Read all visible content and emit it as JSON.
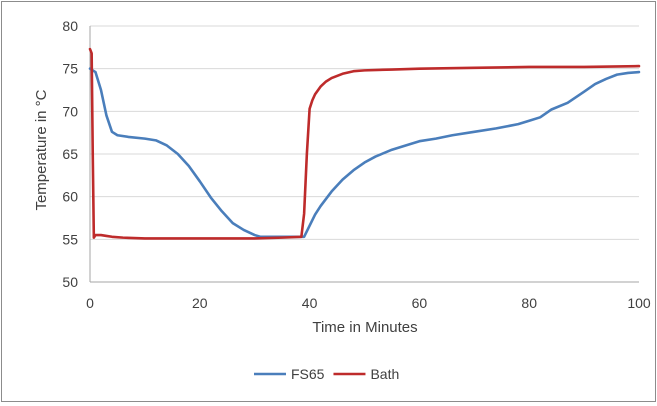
{
  "chart_data": {
    "type": "line",
    "title": "",
    "xlabel": "Time in Minutes",
    "ylabel": "Temperature in °C",
    "xlim": [
      0,
      100
    ],
    "ylim": [
      50,
      80
    ],
    "xticks": [
      "0",
      "20",
      "40",
      "60",
      "80",
      "100"
    ],
    "yticks": [
      "50",
      "55",
      "60",
      "65",
      "70",
      "75",
      "80"
    ],
    "grid": "horizontal",
    "legend": "bottom",
    "series": [
      {
        "name": "FS65",
        "color": "#4a7ebb",
        "points": [
          [
            0,
            75.0
          ],
          [
            1,
            74.6
          ],
          [
            2,
            72.5
          ],
          [
            3,
            69.5
          ],
          [
            4,
            67.6
          ],
          [
            5,
            67.2
          ],
          [
            7,
            67.0
          ],
          [
            10,
            66.8
          ],
          [
            12,
            66.6
          ],
          [
            14,
            66.0
          ],
          [
            16,
            65.0
          ],
          [
            18,
            63.6
          ],
          [
            20,
            61.8
          ],
          [
            22,
            59.9
          ],
          [
            24,
            58.3
          ],
          [
            26,
            56.9
          ],
          [
            28,
            56.1
          ],
          [
            30,
            55.5
          ],
          [
            31,
            55.3
          ],
          [
            33,
            55.3
          ],
          [
            36,
            55.3
          ],
          [
            39,
            55.3
          ],
          [
            40,
            56.6
          ],
          [
            41,
            57.9
          ],
          [
            42,
            58.9
          ],
          [
            44,
            60.6
          ],
          [
            46,
            62.0
          ],
          [
            48,
            63.1
          ],
          [
            50,
            64.0
          ],
          [
            52,
            64.7
          ],
          [
            55,
            65.5
          ],
          [
            58,
            66.1
          ],
          [
            60,
            66.5
          ],
          [
            63,
            66.8
          ],
          [
            66,
            67.2
          ],
          [
            70,
            67.6
          ],
          [
            74,
            68.0
          ],
          [
            78,
            68.5
          ],
          [
            80,
            68.9
          ],
          [
            82,
            69.3
          ],
          [
            84,
            70.2
          ],
          [
            87,
            71.0
          ],
          [
            90,
            72.3
          ],
          [
            92,
            73.2
          ],
          [
            94,
            73.8
          ],
          [
            96,
            74.3
          ],
          [
            98,
            74.5
          ],
          [
            100,
            74.6
          ]
        ]
      },
      {
        "name": "Bath",
        "color": "#be2b2b",
        "points": [
          [
            0,
            77.3
          ],
          [
            0.3,
            76.8
          ],
          [
            0.5,
            65.0
          ],
          [
            0.7,
            55.2
          ],
          [
            1,
            55.5
          ],
          [
            2,
            55.5
          ],
          [
            3,
            55.4
          ],
          [
            4,
            55.3
          ],
          [
            6,
            55.2
          ],
          [
            10,
            55.1
          ],
          [
            20,
            55.1
          ],
          [
            30,
            55.1
          ],
          [
            35,
            55.2
          ],
          [
            38.5,
            55.3
          ],
          [
            39,
            58.0
          ],
          [
            39.5,
            65.0
          ],
          [
            40,
            70.3
          ],
          [
            40.5,
            71.3
          ],
          [
            41,
            72.0
          ],
          [
            42,
            72.9
          ],
          [
            43,
            73.5
          ],
          [
            44,
            73.9
          ],
          [
            46,
            74.4
          ],
          [
            48,
            74.7
          ],
          [
            50,
            74.8
          ],
          [
            55,
            74.9
          ],
          [
            60,
            75.0
          ],
          [
            70,
            75.1
          ],
          [
            80,
            75.2
          ],
          [
            90,
            75.2
          ],
          [
            100,
            75.3
          ]
        ]
      }
    ]
  }
}
